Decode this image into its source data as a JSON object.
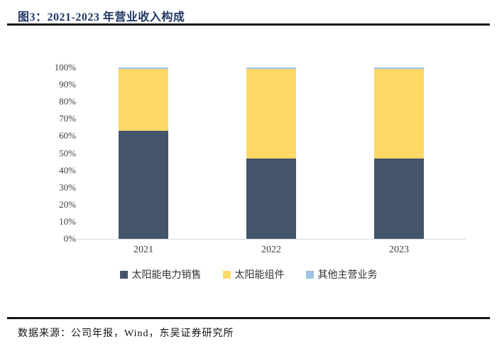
{
  "page": {
    "title": "图3：2021-2023 年营业收入构成",
    "source": "数据来源：公司年报，Wind，东吴证券研究所"
  },
  "colors": {
    "title_text": "#1F3864",
    "divider": "#161616",
    "axis_line": "#D9D9D9",
    "tick_text": "#3F3F3F"
  },
  "chart_data": {
    "type": "bar",
    "stacked": true,
    "title": "2021-2023 年营业收入构成",
    "categories": [
      "2021",
      "2022",
      "2023"
    ],
    "series": [
      {
        "name": "太阳能电力销售",
        "color": "#44546A",
        "values": [
          63,
          47,
          47
        ]
      },
      {
        "name": "太阳能组件",
        "color": "#FFD966",
        "values": [
          36,
          52,
          52
        ]
      },
      {
        "name": "其他主营业务",
        "color": "#9DC3E6",
        "values": [
          1,
          1,
          1
        ]
      }
    ],
    "ylabel": "",
    "xlabel": "",
    "ylim": [
      0,
      100
    ],
    "ytick_step": 10,
    "yticks": [
      "0%",
      "10%",
      "20%",
      "30%",
      "40%",
      "50%",
      "60%",
      "70%",
      "80%",
      "90%",
      "100%"
    ],
    "grid": false,
    "legend_position": "bottom"
  }
}
